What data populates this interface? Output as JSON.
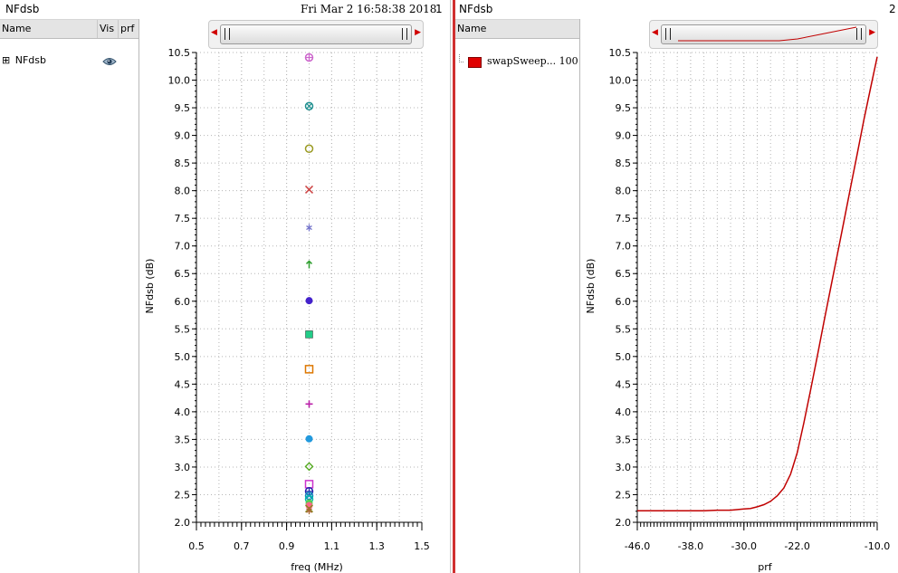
{
  "left_panel": {
    "title": "NFdsb",
    "timestamp": "Fri Mar 2 16:58:38 2018",
    "subwindow_number": "1",
    "columns": [
      "Name",
      "Vis",
      "prf"
    ],
    "tree_item": {
      "expander": "⊞",
      "label": "NFdsb",
      "visibility_icon": "eye-icon"
    }
  },
  "right_panel": {
    "title": "NFdsb",
    "subwindow_number": "2",
    "columns": [
      "Name"
    ],
    "legend_item": {
      "label": "swapSweep... 100",
      "color": "#e00000"
    }
  },
  "colors": {
    "trace": "#c00000",
    "grid": "#b5b5b5",
    "divider": "#d03030",
    "scroll_arrow": "#d00000"
  },
  "chart_data": [
    {
      "type": "scatter",
      "xlabel": "freq (MHz)",
      "ylabel": "NFdsb (dB)",
      "xlim": [
        0.5,
        1.5
      ],
      "ylim": [
        2.0,
        10.5
      ],
      "x_ticks": [
        "0.5",
        "0.7",
        "0.9",
        "1.1",
        "1.3",
        "1.5"
      ],
      "y_ticks": [
        "2.0",
        "2.5",
        "3.0",
        "3.5",
        "4.0",
        "4.5",
        "5.0",
        "5.5",
        "6.0",
        "6.5",
        "7.0",
        "7.5",
        "8.0",
        "8.5",
        "9.0",
        "9.5",
        "10.0",
        "10.5"
      ],
      "grid": true,
      "points": [
        {
          "x": 1.0,
          "y": 10.41,
          "marker": "circle-plus",
          "color": "#cc66cc"
        },
        {
          "x": 1.0,
          "y": 9.53,
          "marker": "circle-x",
          "color": "#1f8f8f"
        },
        {
          "x": 1.0,
          "y": 8.76,
          "marker": "circle",
          "color": "#9a9a22"
        },
        {
          "x": 1.0,
          "y": 8.02,
          "marker": "x",
          "color": "#cc4444"
        },
        {
          "x": 1.0,
          "y": 7.33,
          "marker": "star",
          "color": "#7777cc"
        },
        {
          "x": 1.0,
          "y": 6.66,
          "marker": "arrow",
          "color": "#2e9e2e"
        },
        {
          "x": 1.0,
          "y": 6.01,
          "marker": "filled-circle",
          "color": "#4422cc"
        },
        {
          "x": 1.0,
          "y": 5.4,
          "marker": "filled-square",
          "color": "#22cc88"
        },
        {
          "x": 1.0,
          "y": 4.77,
          "marker": "square",
          "color": "#dd7700"
        },
        {
          "x": 1.0,
          "y": 4.14,
          "marker": "plus",
          "color": "#bb22aa"
        },
        {
          "x": 1.0,
          "y": 3.51,
          "marker": "filled-circle",
          "color": "#2299dd"
        },
        {
          "x": 1.0,
          "y": 3.01,
          "marker": "diamond",
          "color": "#55aa22"
        },
        {
          "x": 1.0,
          "y": 2.69,
          "marker": "square",
          "color": "#cc33cc"
        },
        {
          "x": 1.0,
          "y": 2.56,
          "marker": "circle-plus",
          "color": "#2222aa"
        },
        {
          "x": 1.0,
          "y": 2.48,
          "marker": "circle-x",
          "color": "#1188bb"
        },
        {
          "x": 1.0,
          "y": 2.42,
          "marker": "circle",
          "color": "#00bbaa"
        },
        {
          "x": 1.0,
          "y": 2.35,
          "marker": "filled-circle",
          "color": "#55cc55"
        },
        {
          "x": 1.0,
          "y": 2.3,
          "marker": "filled-circle",
          "color": "#ff6688"
        },
        {
          "x": 1.0,
          "y": 2.25,
          "marker": "x",
          "color": "#888822"
        },
        {
          "x": 1.0,
          "y": 2.21,
          "marker": "star",
          "color": "#aa6633"
        }
      ]
    },
    {
      "type": "line",
      "xlabel": "prf",
      "ylabel": "NFdsb (dB)",
      "xlim": [
        -46.0,
        -10.0
      ],
      "ylim": [
        2.0,
        10.5
      ],
      "x_ticks": [
        "-46.0",
        "-38.0",
        "-30.0",
        "-22.0",
        "-10.0"
      ],
      "y_ticks": [
        "2.0",
        "2.5",
        "3.0",
        "3.5",
        "4.0",
        "4.5",
        "5.0",
        "5.5",
        "6.0",
        "6.5",
        "7.0",
        "7.5",
        "8.0",
        "8.5",
        "9.0",
        "9.5",
        "10.0",
        "10.5"
      ],
      "grid": true,
      "series": [
        {
          "x": [
            -46,
            -44,
            -42,
            -40,
            -38,
            -36,
            -34,
            -32,
            -30,
            -29,
            -28,
            -27,
            -26,
            -25,
            -24,
            -23,
            -22,
            -21,
            -20,
            -19,
            -18,
            -17,
            -16,
            -15,
            -14,
            -13,
            -12,
            -11,
            -10
          ],
          "y": [
            2.21,
            2.21,
            2.21,
            2.21,
            2.21,
            2.21,
            2.22,
            2.22,
            2.24,
            2.25,
            2.28,
            2.32,
            2.38,
            2.48,
            2.62,
            2.87,
            3.26,
            3.8,
            4.39,
            5.0,
            5.62,
            6.23,
            6.83,
            7.44,
            8.06,
            8.66,
            9.28,
            9.85,
            10.42
          ]
        }
      ]
    }
  ]
}
